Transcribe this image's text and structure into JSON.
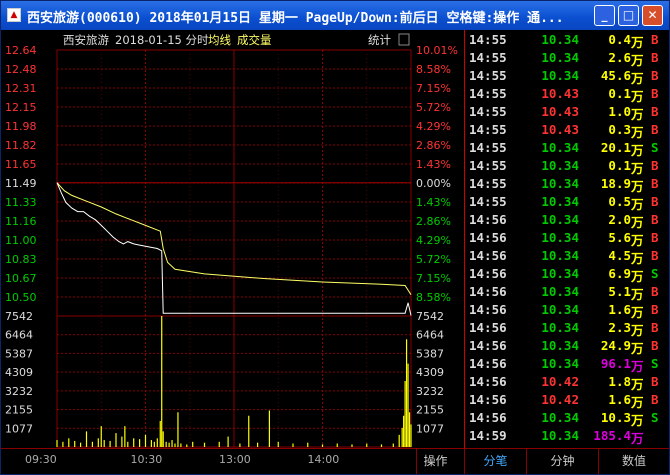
{
  "window": {
    "title": "西安旅游(000610) 2018年01月15日 星期一 PageUp/Down:前后日 空格键:操作 通...",
    "icon": "app-icon"
  },
  "chart_header": {
    "name": "西安旅游",
    "date_label": "2018-01-15 分时",
    "avg_label": "均线",
    "vol_label": "成交量",
    "stats_label": "统计"
  },
  "colors": {
    "price_up": "#ff3333",
    "price_down": "#00cc00",
    "price_line": "#ffffff",
    "avg_line": "#ffff66",
    "volume_bar": "#ffff00",
    "grid": "#880000",
    "big_volume": "#dd00dd"
  },
  "chart_data": {
    "type": "line",
    "prev_close": 11.49,
    "price_ticks_left": [
      "12.64",
      "12.48",
      "12.31",
      "12.15",
      "11.98",
      "11.82",
      "11.65",
      "11.49",
      "11.33",
      "11.16",
      "11.00",
      "10.83",
      "10.67",
      "10.50"
    ],
    "pct_ticks_right": [
      "10.01%",
      "8.58%",
      "7.15%",
      "5.72%",
      "4.29%",
      "2.86%",
      "1.43%",
      "0.00%",
      "1.43%",
      "2.86%",
      "4.29%",
      "5.72%",
      "7.15%",
      "8.58%"
    ],
    "ylim": [
      10.34,
      12.64
    ],
    "volume_ticks": [
      "7542",
      "6464",
      "5387",
      "4309",
      "3232",
      "2155",
      "1077"
    ],
    "volume_max": 7542,
    "x_ticks": [
      "09:30",
      "10:30",
      "13:00",
      "14:00"
    ],
    "total_minutes": 240,
    "price_series": [
      [
        0,
        11.49
      ],
      [
        3,
        11.4
      ],
      [
        6,
        11.32
      ],
      [
        10,
        11.27
      ],
      [
        14,
        11.24
      ],
      [
        18,
        11.24
      ],
      [
        22,
        11.2
      ],
      [
        26,
        11.17
      ],
      [
        30,
        11.12
      ],
      [
        34,
        11.07
      ],
      [
        38,
        11.02
      ],
      [
        42,
        10.98
      ],
      [
        45,
        10.96
      ],
      [
        48,
        10.98
      ],
      [
        52,
        10.96
      ],
      [
        56,
        10.95
      ],
      [
        60,
        10.94
      ],
      [
        64,
        10.93
      ],
      [
        68,
        10.92
      ],
      [
        71,
        10.9
      ],
      [
        72,
        10.36
      ],
      [
        100,
        10.36
      ],
      [
        140,
        10.36
      ],
      [
        180,
        10.36
      ],
      [
        220,
        10.36
      ],
      [
        236,
        10.36
      ],
      [
        238,
        10.45
      ],
      [
        240,
        10.34
      ]
    ],
    "avg_series": [
      [
        0,
        11.49
      ],
      [
        5,
        11.42
      ],
      [
        10,
        11.38
      ],
      [
        20,
        11.33
      ],
      [
        30,
        11.28
      ],
      [
        40,
        11.22
      ],
      [
        50,
        11.17
      ],
      [
        60,
        11.12
      ],
      [
        70,
        11.07
      ],
      [
        72,
        10.92
      ],
      [
        75,
        10.8
      ],
      [
        80,
        10.74
      ],
      [
        100,
        10.7
      ],
      [
        140,
        10.66
      ],
      [
        180,
        10.63
      ],
      [
        220,
        10.61
      ],
      [
        236,
        10.6
      ],
      [
        240,
        10.52
      ]
    ],
    "volume_series": [
      [
        0,
        400
      ],
      [
        4,
        300
      ],
      [
        8,
        500
      ],
      [
        12,
        350
      ],
      [
        16,
        250
      ],
      [
        20,
        900
      ],
      [
        24,
        300
      ],
      [
        28,
        500
      ],
      [
        30,
        1200
      ],
      [
        32,
        400
      ],
      [
        36,
        350
      ],
      [
        40,
        800
      ],
      [
        44,
        600
      ],
      [
        46,
        1200
      ],
      [
        48,
        300
      ],
      [
        52,
        500
      ],
      [
        56,
        450
      ],
      [
        60,
        700
      ],
      [
        64,
        400
      ],
      [
        66,
        300
      ],
      [
        68,
        500
      ],
      [
        70,
        1500
      ],
      [
        71,
        7542
      ],
      [
        72,
        900
      ],
      [
        74,
        300
      ],
      [
        76,
        250
      ],
      [
        78,
        400
      ],
      [
        80,
        200
      ],
      [
        82,
        2000
      ],
      [
        84,
        200
      ],
      [
        88,
        150
      ],
      [
        92,
        300
      ],
      [
        100,
        250
      ],
      [
        110,
        300
      ],
      [
        116,
        600
      ],
      [
        124,
        200
      ],
      [
        130,
        1800
      ],
      [
        136,
        250
      ],
      [
        144,
        2100
      ],
      [
        150,
        300
      ],
      [
        160,
        200
      ],
      [
        170,
        250
      ],
      [
        180,
        150
      ],
      [
        190,
        200
      ],
      [
        200,
        150
      ],
      [
        210,
        200
      ],
      [
        220,
        150
      ],
      [
        228,
        200
      ],
      [
        232,
        700
      ],
      [
        234,
        1100
      ],
      [
        235,
        1800
      ],
      [
        236,
        3800
      ],
      [
        237,
        6200
      ],
      [
        238,
        4800
      ],
      [
        239,
        2000
      ],
      [
        240,
        1300
      ]
    ]
  },
  "trades": [
    {
      "time": "14:55",
      "price": "10.34",
      "vol": "0.4",
      "unit": "万",
      "side": "B"
    },
    {
      "time": "14:55",
      "price": "10.34",
      "vol": "2.6",
      "unit": "万",
      "side": "B"
    },
    {
      "time": "14:55",
      "price": "10.34",
      "vol": "45.6",
      "unit": "万",
      "side": "B"
    },
    {
      "time": "14:55",
      "price": "10.43",
      "vol": "0.1",
      "unit": "万",
      "side": "B"
    },
    {
      "time": "14:55",
      "price": "10.43",
      "vol": "1.0",
      "unit": "万",
      "side": "B"
    },
    {
      "time": "14:55",
      "price": "10.43",
      "vol": "0.3",
      "unit": "万",
      "side": "B"
    },
    {
      "time": "14:55",
      "price": "10.34",
      "vol": "20.1",
      "unit": "万",
      "side": "S"
    },
    {
      "time": "14:55",
      "price": "10.34",
      "vol": "0.1",
      "unit": "万",
      "side": "B"
    },
    {
      "time": "14:55",
      "price": "10.34",
      "vol": "18.9",
      "unit": "万",
      "side": "B"
    },
    {
      "time": "14:55",
      "price": "10.34",
      "vol": "0.5",
      "unit": "万",
      "side": "B"
    },
    {
      "time": "14:56",
      "price": "10.34",
      "vol": "2.0",
      "unit": "万",
      "side": "B"
    },
    {
      "time": "14:56",
      "price": "10.34",
      "vol": "5.6",
      "unit": "万",
      "side": "B"
    },
    {
      "time": "14:56",
      "price": "10.34",
      "vol": "4.5",
      "unit": "万",
      "side": "B"
    },
    {
      "time": "14:56",
      "price": "10.34",
      "vol": "6.9",
      "unit": "万",
      "side": "S"
    },
    {
      "time": "14:56",
      "price": "10.34",
      "vol": "5.1",
      "unit": "万",
      "side": "B"
    },
    {
      "time": "14:56",
      "price": "10.34",
      "vol": "1.6",
      "unit": "万",
      "side": "B"
    },
    {
      "time": "14:56",
      "price": "10.34",
      "vol": "2.3",
      "unit": "万",
      "side": "B"
    },
    {
      "time": "14:56",
      "price": "10.34",
      "vol": "24.9",
      "unit": "万",
      "side": "B"
    },
    {
      "time": "14:56",
      "price": "10.34",
      "vol": "96.1",
      "unit": "万",
      "side": "S",
      "big": true
    },
    {
      "time": "14:56",
      "price": "10.42",
      "vol": "1.8",
      "unit": "万",
      "side": "B"
    },
    {
      "time": "14:56",
      "price": "10.42",
      "vol": "1.6",
      "unit": "万",
      "side": "B"
    },
    {
      "time": "14:56",
      "price": "10.34",
      "vol": "10.3",
      "unit": "万",
      "side": "S"
    },
    {
      "time": "14:59",
      "price": "10.34",
      "vol": "185.4",
      "unit": "万",
      "side": "",
      "big": true
    }
  ],
  "statusbar": {
    "tab_operate": "操作",
    "tab_ticks": "分笔",
    "tab_minutes": "分钟",
    "tab_values": "数值"
  }
}
